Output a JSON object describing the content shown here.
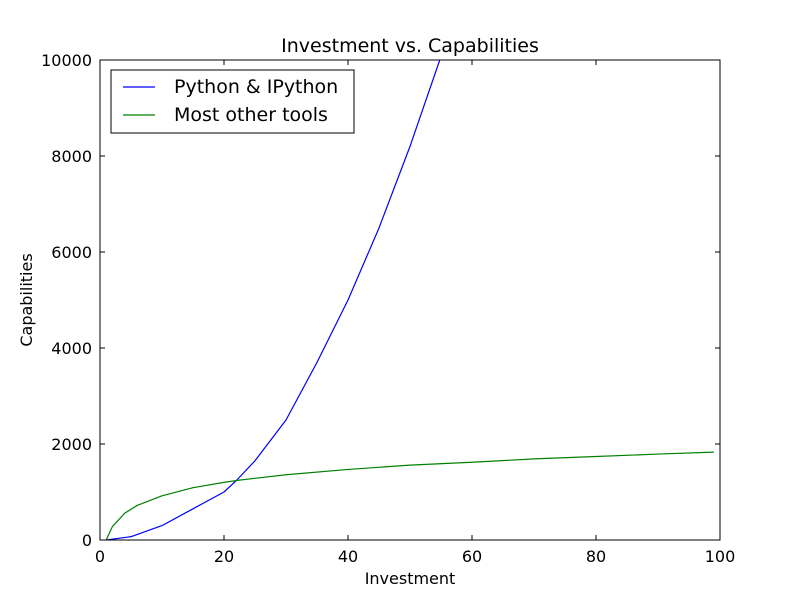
{
  "chart_data": {
    "type": "line",
    "title": "Investment vs. Capabilities",
    "xlabel": "Investment",
    "ylabel": "Capabilities",
    "xlim": [
      0,
      100
    ],
    "ylim": [
      0,
      10000
    ],
    "xticks": [
      0,
      20,
      40,
      60,
      80,
      100
    ],
    "yticks": [
      0,
      2000,
      4000,
      6000,
      8000,
      10000
    ],
    "grid": false,
    "legend_position": "upper-left",
    "series": [
      {
        "name": "Python & IPython",
        "color": "#0000ff",
        "x": [
          1,
          5,
          10,
          15,
          20,
          22,
          25,
          30,
          35,
          40,
          45,
          50,
          54.8
        ],
        "y": [
          0,
          70,
          300,
          650,
          1000,
          1240,
          1650,
          2500,
          3700,
          5000,
          6500,
          8200,
          10000
        ]
      },
      {
        "name": "Most other tools",
        "color": "#008000",
        "x": [
          1,
          2,
          4,
          6,
          10,
          15,
          20,
          22,
          30,
          40,
          50,
          60,
          70,
          80,
          90,
          99
        ],
        "y": [
          0,
          280,
          560,
          720,
          920,
          1090,
          1200,
          1240,
          1360,
          1470,
          1560,
          1620,
          1690,
          1740,
          1790,
          1830
        ]
      }
    ]
  }
}
